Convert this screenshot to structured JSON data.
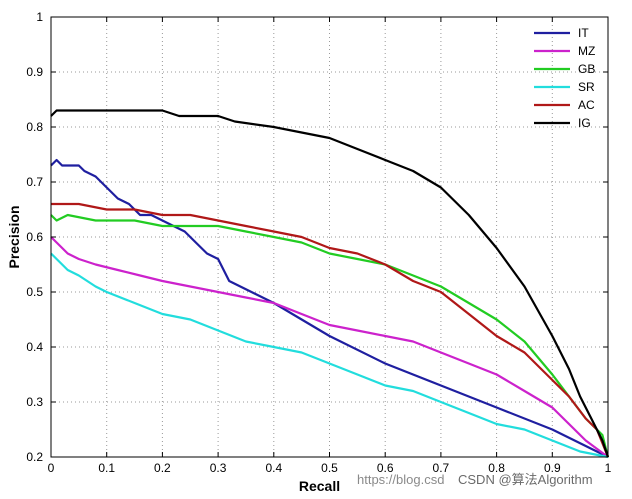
{
  "chart_data": {
    "type": "line",
    "title": "",
    "xlabel": "Recall",
    "ylabel": "Precision",
    "xlim": [
      0,
      1
    ],
    "ylim": [
      0.2,
      1
    ],
    "xticks": [
      0,
      0.1,
      0.2,
      0.3,
      0.4,
      0.5,
      0.6,
      0.7,
      0.8,
      0.9,
      1
    ],
    "yticks": [
      0.2,
      0.3,
      0.4,
      0.5,
      0.6,
      0.7,
      0.8,
      0.9,
      1
    ],
    "grid": true,
    "legend_position": "top-right",
    "series": [
      {
        "name": "IT",
        "color": "#1f1fa0",
        "points": [
          [
            0,
            0.73
          ],
          [
            0.01,
            0.74
          ],
          [
            0.02,
            0.73
          ],
          [
            0.05,
            0.73
          ],
          [
            0.06,
            0.72
          ],
          [
            0.08,
            0.71
          ],
          [
            0.1,
            0.69
          ],
          [
            0.12,
            0.67
          ],
          [
            0.14,
            0.66
          ],
          [
            0.16,
            0.64
          ],
          [
            0.18,
            0.64
          ],
          [
            0.2,
            0.63
          ],
          [
            0.22,
            0.62
          ],
          [
            0.24,
            0.61
          ],
          [
            0.26,
            0.59
          ],
          [
            0.28,
            0.57
          ],
          [
            0.3,
            0.56
          ],
          [
            0.32,
            0.52
          ],
          [
            0.4,
            0.48
          ],
          [
            0.5,
            0.42
          ],
          [
            0.6,
            0.37
          ],
          [
            0.7,
            0.33
          ],
          [
            0.8,
            0.29
          ],
          [
            0.9,
            0.25
          ],
          [
            1,
            0.2
          ]
        ]
      },
      {
        "name": "MZ",
        "color": "#cc22cc",
        "points": [
          [
            0,
            0.6
          ],
          [
            0.01,
            0.59
          ],
          [
            0.03,
            0.57
          ],
          [
            0.05,
            0.56
          ],
          [
            0.08,
            0.55
          ],
          [
            0.12,
            0.54
          ],
          [
            0.16,
            0.53
          ],
          [
            0.2,
            0.52
          ],
          [
            0.25,
            0.51
          ],
          [
            0.3,
            0.5
          ],
          [
            0.35,
            0.49
          ],
          [
            0.4,
            0.48
          ],
          [
            0.45,
            0.46
          ],
          [
            0.5,
            0.44
          ],
          [
            0.55,
            0.43
          ],
          [
            0.6,
            0.42
          ],
          [
            0.65,
            0.41
          ],
          [
            0.7,
            0.39
          ],
          [
            0.75,
            0.37
          ],
          [
            0.8,
            0.35
          ],
          [
            0.85,
            0.32
          ],
          [
            0.9,
            0.29
          ],
          [
            0.93,
            0.26
          ],
          [
            0.96,
            0.23
          ],
          [
            1,
            0.2
          ]
        ]
      },
      {
        "name": "GB",
        "color": "#22cc22",
        "points": [
          [
            0,
            0.64
          ],
          [
            0.01,
            0.63
          ],
          [
            0.03,
            0.64
          ],
          [
            0.08,
            0.63
          ],
          [
            0.15,
            0.63
          ],
          [
            0.2,
            0.62
          ],
          [
            0.3,
            0.62
          ],
          [
            0.35,
            0.61
          ],
          [
            0.4,
            0.6
          ],
          [
            0.45,
            0.59
          ],
          [
            0.5,
            0.57
          ],
          [
            0.55,
            0.56
          ],
          [
            0.6,
            0.55
          ],
          [
            0.65,
            0.53
          ],
          [
            0.7,
            0.51
          ],
          [
            0.75,
            0.48
          ],
          [
            0.8,
            0.45
          ],
          [
            0.85,
            0.41
          ],
          [
            0.9,
            0.35
          ],
          [
            0.93,
            0.31
          ],
          [
            0.96,
            0.27
          ],
          [
            0.98,
            0.25
          ],
          [
            0.99,
            0.24
          ],
          [
            1,
            0.2
          ]
        ]
      },
      {
        "name": "SR",
        "color": "#22dddd",
        "points": [
          [
            0,
            0.57
          ],
          [
            0.01,
            0.56
          ],
          [
            0.03,
            0.54
          ],
          [
            0.05,
            0.53
          ],
          [
            0.08,
            0.51
          ],
          [
            0.1,
            0.5
          ],
          [
            0.15,
            0.48
          ],
          [
            0.2,
            0.46
          ],
          [
            0.25,
            0.45
          ],
          [
            0.3,
            0.43
          ],
          [
            0.35,
            0.41
          ],
          [
            0.4,
            0.4
          ],
          [
            0.45,
            0.39
          ],
          [
            0.5,
            0.37
          ],
          [
            0.55,
            0.35
          ],
          [
            0.6,
            0.33
          ],
          [
            0.65,
            0.32
          ],
          [
            0.7,
            0.3
          ],
          [
            0.75,
            0.28
          ],
          [
            0.8,
            0.26
          ],
          [
            0.85,
            0.25
          ],
          [
            0.9,
            0.23
          ],
          [
            0.95,
            0.21
          ],
          [
            1,
            0.2
          ]
        ]
      },
      {
        "name": "AC",
        "color": "#b01818",
        "points": [
          [
            0,
            0.66
          ],
          [
            0.05,
            0.66
          ],
          [
            0.1,
            0.65
          ],
          [
            0.15,
            0.65
          ],
          [
            0.2,
            0.64
          ],
          [
            0.25,
            0.64
          ],
          [
            0.3,
            0.63
          ],
          [
            0.35,
            0.62
          ],
          [
            0.4,
            0.61
          ],
          [
            0.45,
            0.6
          ],
          [
            0.5,
            0.58
          ],
          [
            0.55,
            0.57
          ],
          [
            0.6,
            0.55
          ],
          [
            0.65,
            0.52
          ],
          [
            0.7,
            0.5
          ],
          [
            0.75,
            0.46
          ],
          [
            0.8,
            0.42
          ],
          [
            0.85,
            0.39
          ],
          [
            0.9,
            0.34
          ],
          [
            0.93,
            0.31
          ],
          [
            0.96,
            0.27
          ],
          [
            0.98,
            0.25
          ],
          [
            1,
            0.2
          ]
        ]
      },
      {
        "name": "IG",
        "color": "#000000",
        "points": [
          [
            0,
            0.82
          ],
          [
            0.01,
            0.83
          ],
          [
            0.05,
            0.83
          ],
          [
            0.1,
            0.83
          ],
          [
            0.15,
            0.83
          ],
          [
            0.2,
            0.83
          ],
          [
            0.23,
            0.82
          ],
          [
            0.3,
            0.82
          ],
          [
            0.33,
            0.81
          ],
          [
            0.4,
            0.8
          ],
          [
            0.45,
            0.79
          ],
          [
            0.5,
            0.78
          ],
          [
            0.55,
            0.76
          ],
          [
            0.6,
            0.74
          ],
          [
            0.65,
            0.72
          ],
          [
            0.7,
            0.69
          ],
          [
            0.75,
            0.64
          ],
          [
            0.8,
            0.58
          ],
          [
            0.85,
            0.51
          ],
          [
            0.9,
            0.42
          ],
          [
            0.93,
            0.36
          ],
          [
            0.95,
            0.31
          ],
          [
            0.97,
            0.27
          ],
          [
            0.99,
            0.23
          ],
          [
            1,
            0.2
          ]
        ]
      }
    ]
  },
  "watermark": {
    "prefix": "https://blog.csd",
    "brand": "CSDN @算法Algorithm"
  }
}
